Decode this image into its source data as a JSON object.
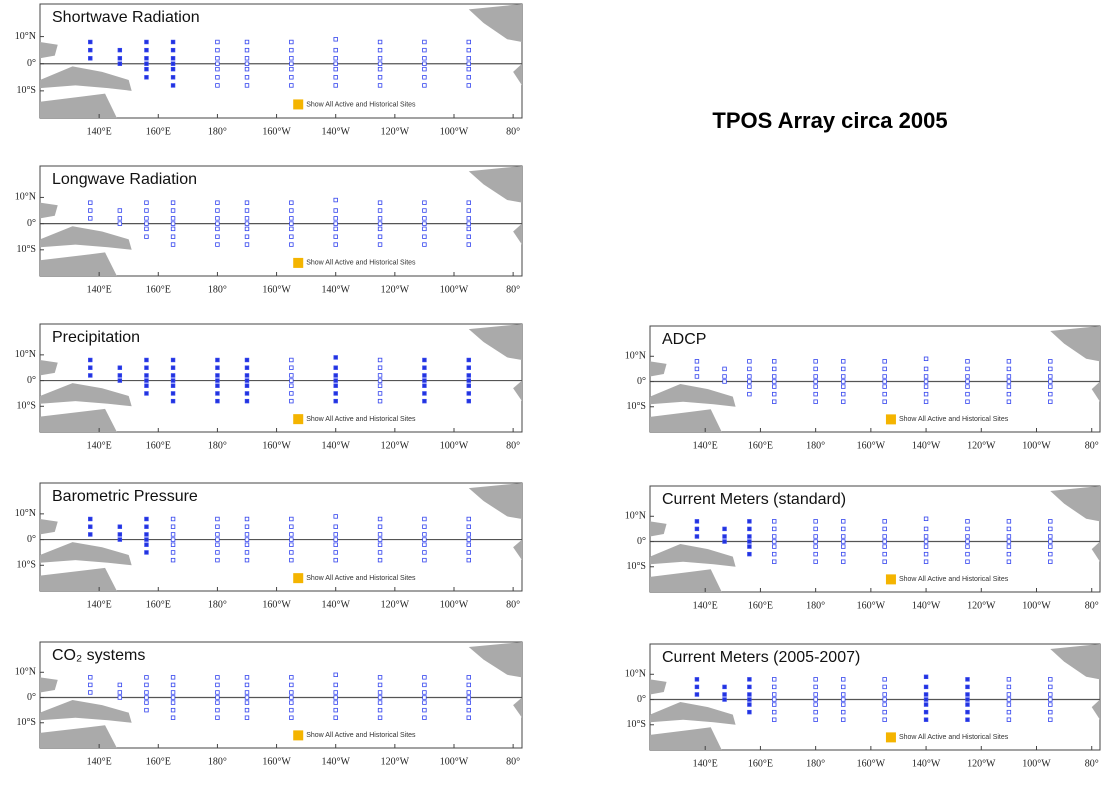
{
  "header": {
    "title": "TPOS Array circa 2005"
  },
  "panels": [
    {
      "title": "Shortwave Radiation"
    },
    {
      "title": "Longwave Radiation"
    },
    {
      "title": "Precipitation"
    },
    {
      "title": "Barometric Pressure"
    },
    {
      "title": "CO₂ systems"
    },
    {
      "title": "ADCP"
    },
    {
      "title": "Current Meters (standard)"
    },
    {
      "title": "Current Meters (2005-2007)"
    }
  ],
  "lat_labels": [
    "10°N",
    "0°",
    "10°S"
  ],
  "lon_labels": [
    "140°E",
    "160°E",
    "180°",
    "160°W",
    "140°W",
    "120°W",
    "100°W",
    "80°"
  ],
  "legend": "Show All Active and Historical Sites"
}
